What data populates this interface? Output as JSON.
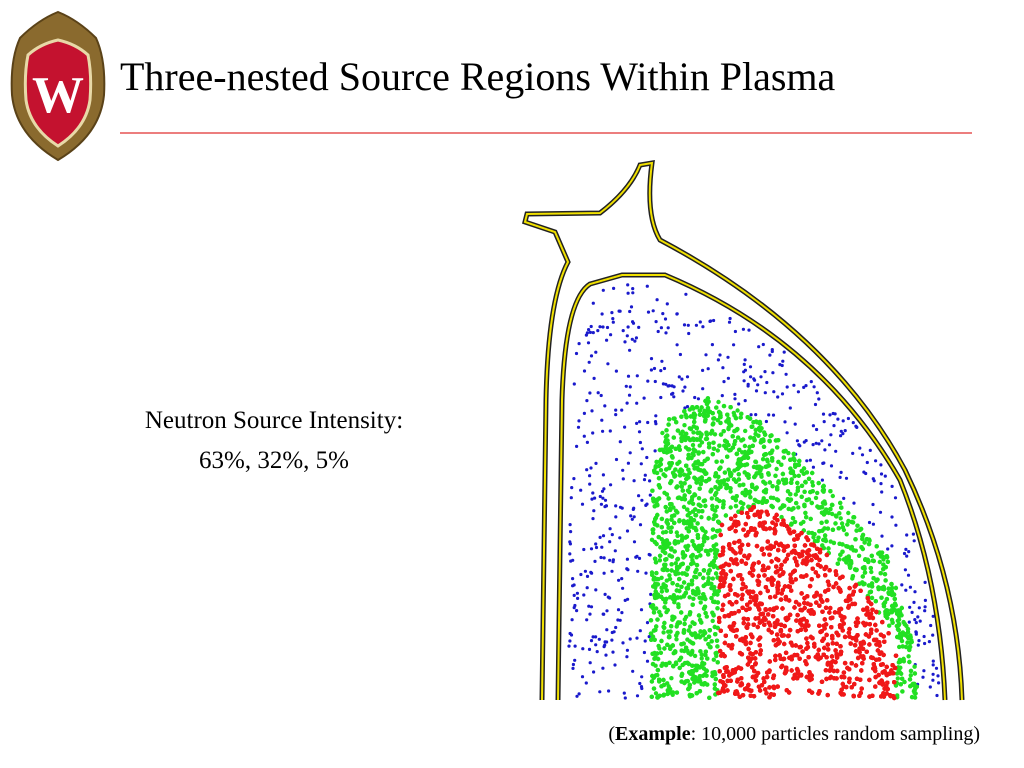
{
  "title": "Three-nested Source Regions Within Plasma",
  "logo": {
    "letter": "W"
  },
  "intensity": {
    "label": "Neutron Source Intensity:",
    "values": "63%, 32%, 5%"
  },
  "caption": {
    "prefix": "(",
    "emphasis": "Example",
    "suffix": ": 10,000 particles random sampling)"
  }
}
